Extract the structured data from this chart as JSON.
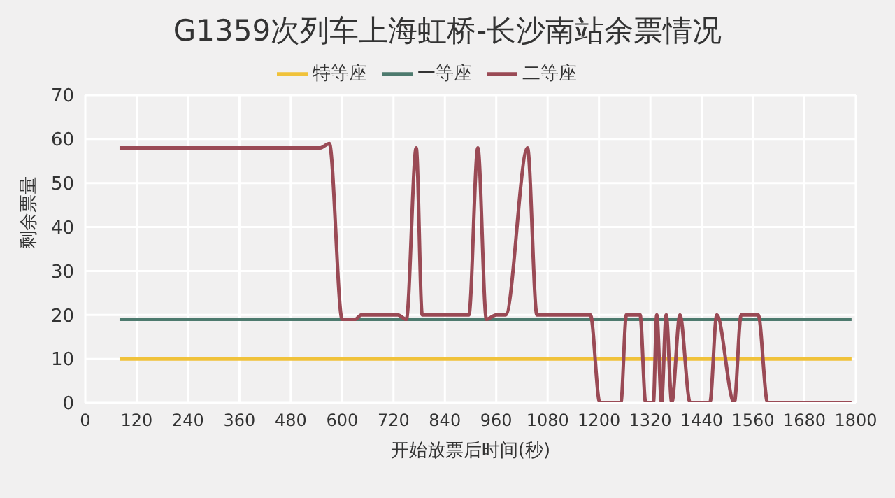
{
  "chart_data": {
    "type": "line",
    "title": "G1359次列车上海虹桥-长沙南站余票情况",
    "xlabel": "开始放票后时间(秒)",
    "ylabel": "剩余票量",
    "xlim": [
      0,
      1800
    ],
    "xticks": [
      0,
      120,
      240,
      360,
      480,
      600,
      720,
      840,
      960,
      1080,
      1200,
      1320,
      1440,
      1560,
      1680,
      1800
    ],
    "ylim": [
      0,
      70
    ],
    "yticks": [
      0,
      10,
      20,
      30,
      40,
      50,
      60,
      70
    ],
    "grid": true,
    "legend": "top",
    "marker": "none",
    "line_style": "solid",
    "series": [
      {
        "name": "特等座",
        "color": "#f0c23a",
        "x": [
          80,
          1790
        ],
        "values": [
          10,
          10
        ]
      },
      {
        "name": "一等座",
        "color": "#4d7a6e",
        "x": [
          80,
          1790
        ],
        "values": [
          19,
          19
        ]
      },
      {
        "name": "二等座",
        "color": "#9a4a55",
        "x": [
          80,
          549,
          570,
          600,
          630,
          645,
          730,
          750,
          773,
          787,
          896,
          917,
          937,
          960,
          982,
          1033,
          1055,
          1180,
          1202,
          1251,
          1264,
          1296,
          1309,
          1327,
          1335,
          1346,
          1357,
          1370,
          1389,
          1413,
          1459,
          1475,
          1516,
          1532,
          1572,
          1594,
          1611,
          1790
        ],
        "values": [
          58,
          58,
          59,
          19,
          19,
          20,
          20,
          19,
          58,
          20,
          20,
          58,
          19,
          20,
          20,
          58,
          20,
          20,
          0,
          0,
          20,
          20,
          0,
          0,
          20,
          0,
          20,
          0,
          20,
          0,
          0,
          20,
          0,
          20,
          20,
          0,
          0,
          0
        ]
      }
    ]
  }
}
